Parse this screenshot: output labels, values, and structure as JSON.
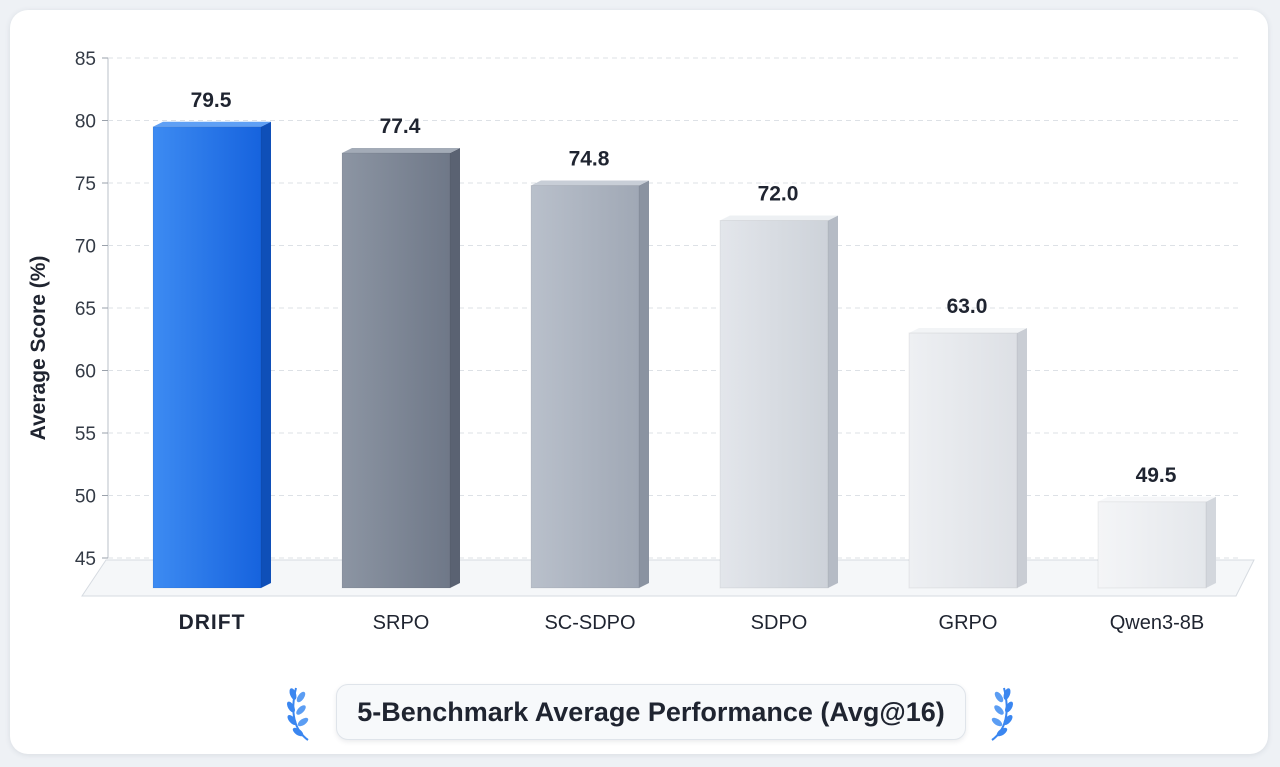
{
  "chart_data": {
    "type": "bar",
    "categories": [
      "DRIFT",
      "SRPO",
      "SC-SDPO",
      "SDPO",
      "GRPO",
      "Qwen3-8B"
    ],
    "values": [
      79.5,
      77.4,
      74.8,
      72.0,
      63.0,
      49.5
    ],
    "value_labels": [
      "79.5",
      "77.4",
      "74.8",
      "72.0",
      "63.0",
      "49.5"
    ],
    "ylabel": "Average Score (%)",
    "xlabel": "",
    "ylim": [
      45,
      85
    ],
    "yticks": [
      45,
      50,
      55,
      60,
      65,
      70,
      75,
      80,
      85
    ],
    "grid": true,
    "legend": "none",
    "highlight_category": "DRIFT",
    "colors": {
      "highlight": "#1f6fe5",
      "bars": [
        "#1f6fe5",
        "#7f8898",
        "#a9b1be",
        "#cfd4dc",
        "#e1e4e9",
        "#eceef1"
      ]
    }
  },
  "caption": "5-Benchmark Average Performance (Avg@16)",
  "icons": {
    "left": "laurel-icon",
    "right": "laurel-icon"
  }
}
